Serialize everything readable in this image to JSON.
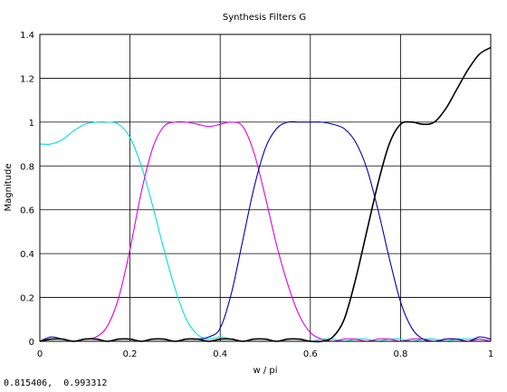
{
  "chart_data": {
    "type": "line",
    "title": "Synthesis Filters G",
    "xlabel": "w / pi",
    "ylabel": "Magnitude",
    "xlim": [
      0,
      1
    ],
    "ylim": [
      0,
      1.4
    ],
    "grid": true,
    "x_ticks": [
      "0",
      "0.2",
      "0.4",
      "0.6",
      "0.8",
      "1"
    ],
    "y_ticks": [
      "0",
      "0.2",
      "0.4",
      "0.6",
      "0.8",
      "1",
      "1.2",
      "1.4"
    ],
    "x": [
      0,
      0.025,
      0.05,
      0.075,
      0.1,
      0.125,
      0.15,
      0.175,
      0.2,
      0.225,
      0.25,
      0.275,
      0.3,
      0.325,
      0.35,
      0.375,
      0.4,
      0.425,
      0.45,
      0.475,
      0.5,
      0.525,
      0.55,
      0.575,
      0.6,
      0.625,
      0.65,
      0.675,
      0.7,
      0.725,
      0.75,
      0.775,
      0.8,
      0.825,
      0.85,
      0.875,
      0.9,
      0.925,
      0.95,
      0.975,
      1
    ],
    "series": [
      {
        "color": "#00e0e0",
        "values": [
          0.9,
          0.9,
          0.92,
          0.96,
          0.99,
          1.0,
          1.0,
          0.99,
          0.93,
          0.8,
          0.62,
          0.42,
          0.24,
          0.1,
          0.03,
          0.01,
          0.02,
          0.01,
          0.0,
          0.01,
          0.01,
          0.0,
          0.01,
          0.01,
          0.0,
          0.01,
          0.01,
          0.0,
          0.01,
          0.01,
          0.0,
          0.01,
          0.01,
          0.0,
          0.01,
          0.01,
          0.0,
          0.01,
          0.01,
          0.01,
          0.0
        ]
      },
      {
        "color": "#e000e0",
        "values": [
          0.0,
          0.01,
          0.01,
          0.0,
          0.01,
          0.02,
          0.07,
          0.2,
          0.42,
          0.68,
          0.88,
          0.98,
          1.0,
          1.0,
          0.99,
          0.98,
          0.99,
          1.0,
          0.98,
          0.86,
          0.66,
          0.44,
          0.26,
          0.12,
          0.04,
          0.01,
          0.0,
          0.01,
          0.01,
          0.0,
          0.01,
          0.01,
          0.0,
          0.01,
          0.01,
          0.0,
          0.01,
          0.01,
          0.0,
          0.01,
          0.0
        ]
      },
      {
        "color": "#0000b0",
        "values": [
          0.0,
          0.02,
          0.01,
          0.0,
          0.01,
          0.01,
          0.0,
          0.01,
          0.01,
          0.0,
          0.01,
          0.01,
          0.0,
          0.01,
          0.01,
          0.02,
          0.06,
          0.22,
          0.46,
          0.7,
          0.88,
          0.97,
          1.0,
          1.0,
          1.0,
          1.0,
          0.99,
          0.97,
          0.91,
          0.79,
          0.6,
          0.38,
          0.18,
          0.06,
          0.01,
          0.0,
          0.01,
          0.01,
          0.0,
          0.02,
          0.01
        ]
      },
      {
        "color": "#000000",
        "values": [
          0.0,
          0.01,
          0.01,
          0.0,
          0.01,
          0.01,
          0.0,
          0.01,
          0.01,
          0.0,
          0.01,
          0.01,
          0.0,
          0.01,
          0.01,
          0.0,
          0.01,
          0.01,
          0.0,
          0.01,
          0.01,
          0.0,
          0.01,
          0.01,
          0.0,
          0.0,
          0.02,
          0.1,
          0.28,
          0.5,
          0.72,
          0.9,
          0.99,
          1.0,
          0.99,
          1.0,
          1.06,
          1.15,
          1.24,
          1.31,
          1.34
        ]
      }
    ]
  },
  "status": {
    "coords": "0.815406,  0.993312"
  }
}
